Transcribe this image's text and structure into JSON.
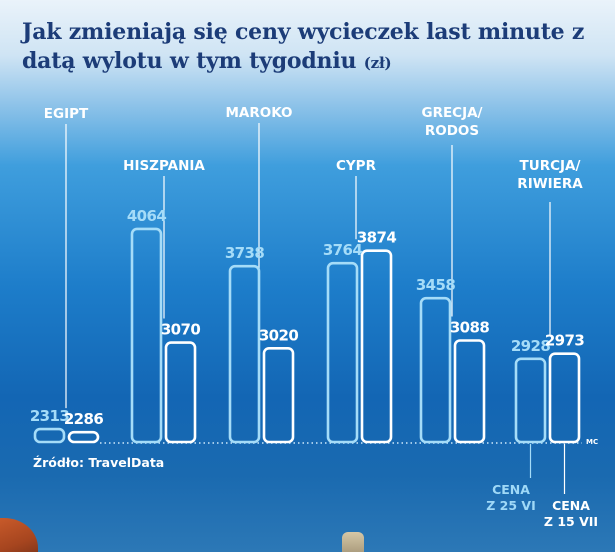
{
  "title": {
    "text": "Jak zmieniają się ceny wycieczek last minute z datą wylotu w tym tygodniu",
    "unit": "(zł)"
  },
  "source": "Źródło: TravelData",
  "credit": "MC",
  "legend": {
    "series_a": [
      "CENA",
      "Z 25 VI"
    ],
    "series_b": [
      "CENA",
      "Z 15 VII"
    ]
  },
  "colors": {
    "series_a": "#a5dcf8",
    "series_b": "#ffffff",
    "title": "#1c3c78",
    "background_top": "#eaf3fa",
    "background_bottom": "#1a6ab0"
  },
  "chart_data": {
    "type": "bar",
    "categories": [
      [
        "EGIPT"
      ],
      [
        "HISZPANIA"
      ],
      [
        "MAROKO"
      ],
      [
        "CYPR"
      ],
      [
        "GRECJA/",
        "RODOS"
      ],
      [
        "TURCJA/",
        "RIWIERA"
      ]
    ],
    "series": [
      {
        "name": "CENA Z 25 VI",
        "values": [
          2313,
          4064,
          3738,
          3764,
          3458,
          2928
        ]
      },
      {
        "name": "CENA Z 15 VII",
        "values": [
          2286,
          3070,
          3020,
          3874,
          3088,
          2973
        ]
      }
    ],
    "value_labels": [
      [
        "2313",
        "4064",
        "3738",
        "3764",
        "3458",
        "2928"
      ],
      [
        "2286",
        "3070",
        "3020",
        "3874",
        "3088",
        "2973"
      ]
    ],
    "xlabel": "",
    "ylabel": "",
    "grid": false,
    "legend_position": "bottom-right"
  }
}
